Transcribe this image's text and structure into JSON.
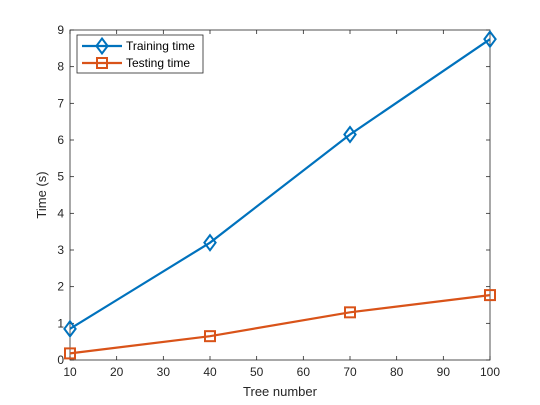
{
  "chart_data": {
    "type": "line",
    "x": [
      10,
      40,
      70,
      100
    ],
    "series": [
      {
        "name": "Training time",
        "values": [
          0.85,
          3.2,
          6.15,
          8.75
        ],
        "color": "#0072BD",
        "marker": "diamond"
      },
      {
        "name": "Testing time",
        "values": [
          0.18,
          0.65,
          1.3,
          1.77
        ],
        "color": "#D95319",
        "marker": "square"
      }
    ],
    "xlabel": "Tree number",
    "ylabel": "Time (s)",
    "xlim": [
      10,
      100
    ],
    "ylim": [
      0,
      9
    ],
    "xticks": [
      "10",
      "20",
      "30",
      "40",
      "50",
      "60",
      "70",
      "80",
      "90",
      "100"
    ],
    "yticks": [
      "0",
      "1",
      "2",
      "3",
      "4",
      "5",
      "6",
      "7",
      "8",
      "9"
    ],
    "grid": false,
    "legend_position": "top-left"
  }
}
